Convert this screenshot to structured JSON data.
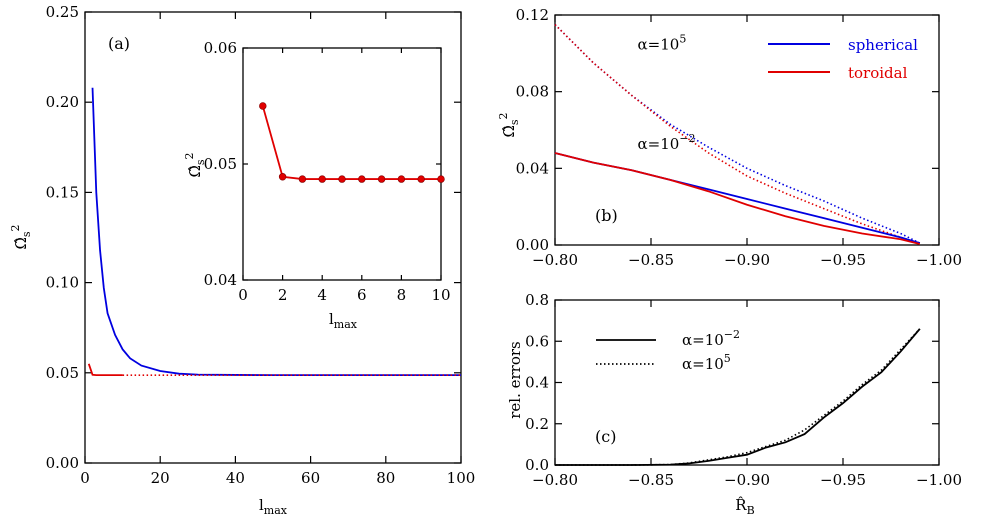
{
  "colors": {
    "spherical": "#0000e0",
    "toroidal": "#e00000",
    "black": "#000000"
  },
  "chart_data": [
    {
      "panel": "(a)",
      "type": "line",
      "xlabel_main": "l",
      "xlabel_sub": "max",
      "ylabel": "Ω̂s²",
      "xlim": [
        0,
        100
      ],
      "ylim": [
        0,
        0.25
      ],
      "xticks": [
        0,
        20,
        40,
        60,
        80,
        100
      ],
      "xtick_labels": [
        "0",
        "20",
        "40",
        "60",
        "80",
        "100"
      ],
      "yticks": [
        0.0,
        0.05,
        0.1,
        0.15,
        0.2,
        0.25
      ],
      "ytick_labels": [
        "0.00",
        "0.05",
        "0.10",
        "0.15",
        "0.20",
        "0.25"
      ],
      "series": [
        {
          "key": "spherical",
          "style": "solid",
          "x": [
            2,
            3,
            4,
            5,
            6,
            8,
            10,
            12,
            15,
            20,
            25,
            30,
            40,
            50,
            60,
            80,
            100
          ],
          "y": [
            0.208,
            0.15,
            0.118,
            0.097,
            0.083,
            0.071,
            0.063,
            0.058,
            0.054,
            0.051,
            0.0495,
            0.049,
            0.0488,
            0.0487,
            0.0487,
            0.0487,
            0.0487
          ]
        },
        {
          "key": "toroidal",
          "style": "solid",
          "x": [
            1,
            2,
            3,
            5,
            10
          ],
          "y": [
            0.055,
            0.0489,
            0.0487,
            0.0487,
            0.0487
          ]
        },
        {
          "key": "toroidal",
          "style": "dotted",
          "x": [
            10,
            50,
            100
          ],
          "y": [
            0.0487,
            0.0487,
            0.0487
          ]
        }
      ],
      "inset": {
        "type": "line",
        "xlim": [
          0,
          10
        ],
        "ylim": [
          0.04,
          0.06
        ],
        "xticks": [
          0,
          2,
          4,
          6,
          8,
          10
        ],
        "xtick_labels": [
          "0",
          "2",
          "4",
          "6",
          "8",
          "10"
        ],
        "yticks": [
          0.04,
          0.05,
          0.06
        ],
        "ytick_labels": [
          "0.04",
          "0.05",
          "0.06"
        ],
        "xlabel_main": "l",
        "xlabel_sub": "max",
        "ylabel": "Ω̂s²",
        "series": [
          {
            "key": "toroidal",
            "markers": true,
            "x": [
              1,
              2,
              3,
              4,
              5,
              6,
              7,
              8,
              9,
              10
            ],
            "y": [
              0.055,
              0.0489,
              0.0487,
              0.0487,
              0.0487,
              0.0487,
              0.0487,
              0.0487,
              0.0487,
              0.0487
            ]
          }
        ]
      }
    },
    {
      "panel": "(b)",
      "type": "line",
      "ylabel": "Ω̂s²",
      "xlim": [
        -0.8,
        -1.0
      ],
      "ylim": [
        0,
        0.12
      ],
      "xticks": [
        -0.8,
        -0.85,
        -0.9,
        -0.95,
        -1.0
      ],
      "xtick_labels": [
        "−0.80",
        "−0.85",
        "−0.90",
        "−0.95",
        "−1.00"
      ],
      "yticks": [
        0.0,
        0.04,
        0.08,
        0.12
      ],
      "ytick_labels": [
        "0.00",
        "0.04",
        "0.08",
        "0.12"
      ],
      "legend": [
        {
          "key": "spherical",
          "label": "spherical"
        },
        {
          "key": "toroidal",
          "label": "toroidal"
        }
      ],
      "annotations": [
        {
          "text_main": "α=10",
          "text_sup": "5",
          "x": -0.843,
          "y": 0.102
        },
        {
          "text_main": "α=10",
          "text_sup": "−2",
          "x": -0.843,
          "y": 0.05
        }
      ],
      "series": [
        {
          "key": "spherical",
          "style": "dotted",
          "alpha": "1e5",
          "x": [
            -0.8,
            -0.82,
            -0.84,
            -0.86,
            -0.88,
            -0.9,
            -0.92,
            -0.94,
            -0.96,
            -0.98,
            -0.99
          ],
          "y": [
            0.115,
            0.095,
            0.078,
            0.063,
            0.051,
            0.04,
            0.031,
            0.023,
            0.014,
            0.006,
            0.001
          ]
        },
        {
          "key": "toroidal",
          "style": "dotted",
          "alpha": "1e5",
          "x": [
            -0.8,
            -0.82,
            -0.84,
            -0.86,
            -0.88,
            -0.9,
            -0.92,
            -0.94,
            -0.96,
            -0.98,
            -0.99
          ],
          "y": [
            0.115,
            0.095,
            0.078,
            0.062,
            0.048,
            0.036,
            0.027,
            0.019,
            0.011,
            0.004,
            0.001
          ]
        },
        {
          "key": "spherical",
          "style": "solid",
          "alpha": "1e-2",
          "x": [
            -0.8,
            -0.82,
            -0.84,
            -0.86,
            -0.88,
            -0.9,
            -0.92,
            -0.94,
            -0.96,
            -0.98,
            -0.99
          ],
          "y": [
            0.048,
            0.043,
            0.039,
            0.034,
            0.029,
            0.024,
            0.019,
            0.014,
            0.009,
            0.004,
            0.001
          ]
        },
        {
          "key": "toroidal",
          "style": "solid",
          "alpha": "1e-2",
          "x": [
            -0.8,
            -0.82,
            -0.84,
            -0.86,
            -0.88,
            -0.9,
            -0.92,
            -0.94,
            -0.96,
            -0.98,
            -0.99
          ],
          "y": [
            0.048,
            0.043,
            0.039,
            0.034,
            0.028,
            0.021,
            0.015,
            0.01,
            0.006,
            0.003,
            0.0005
          ]
        }
      ]
    },
    {
      "panel": "(c)",
      "type": "line",
      "xlabel_main": "R̂",
      "xlabel_sub": "B",
      "ylabel": "rel. errors",
      "xlim": [
        -0.8,
        -1.0
      ],
      "ylim": [
        0,
        0.8
      ],
      "xticks": [
        -0.8,
        -0.85,
        -0.9,
        -0.95,
        -1.0
      ],
      "xtick_labels": [
        "−0.80",
        "−0.85",
        "−0.90",
        "−0.95",
        "−1.00"
      ],
      "yticks": [
        0.0,
        0.2,
        0.4,
        0.6,
        0.8
      ],
      "ytick_labels": [
        "0.0",
        "0.2",
        "0.4",
        "0.6",
        "0.8"
      ],
      "legend": [
        {
          "style": "solid",
          "text_main": "α=10",
          "text_sup": "−2"
        },
        {
          "style": "dotted",
          "text_main": "α=10",
          "text_sup": "5"
        }
      ],
      "series": [
        {
          "key": "black",
          "style": "solid",
          "alpha": "1e-2",
          "x": [
            -0.8,
            -0.84,
            -0.86,
            -0.87,
            -0.88,
            -0.89,
            -0.9,
            -0.91,
            -0.92,
            -0.93,
            -0.94,
            -0.95,
            -0.96,
            -0.97,
            -0.98,
            -0.99
          ],
          "y": [
            0.0,
            0.0,
            0.002,
            0.008,
            0.02,
            0.035,
            0.05,
            0.085,
            0.11,
            0.15,
            0.23,
            0.3,
            0.38,
            0.45,
            0.55,
            0.66
          ]
        },
        {
          "key": "black",
          "style": "dotted",
          "alpha": "1e5",
          "x": [
            -0.8,
            -0.84,
            -0.86,
            -0.87,
            -0.88,
            -0.89,
            -0.9,
            -0.91,
            -0.92,
            -0.93,
            -0.94,
            -0.95,
            -0.96,
            -0.97,
            -0.98,
            -0.99
          ],
          "y": [
            0.0,
            0.0,
            0.002,
            0.01,
            0.025,
            0.04,
            0.06,
            0.09,
            0.12,
            0.17,
            0.24,
            0.31,
            0.39,
            0.46,
            0.56,
            0.66
          ]
        }
      ]
    }
  ]
}
